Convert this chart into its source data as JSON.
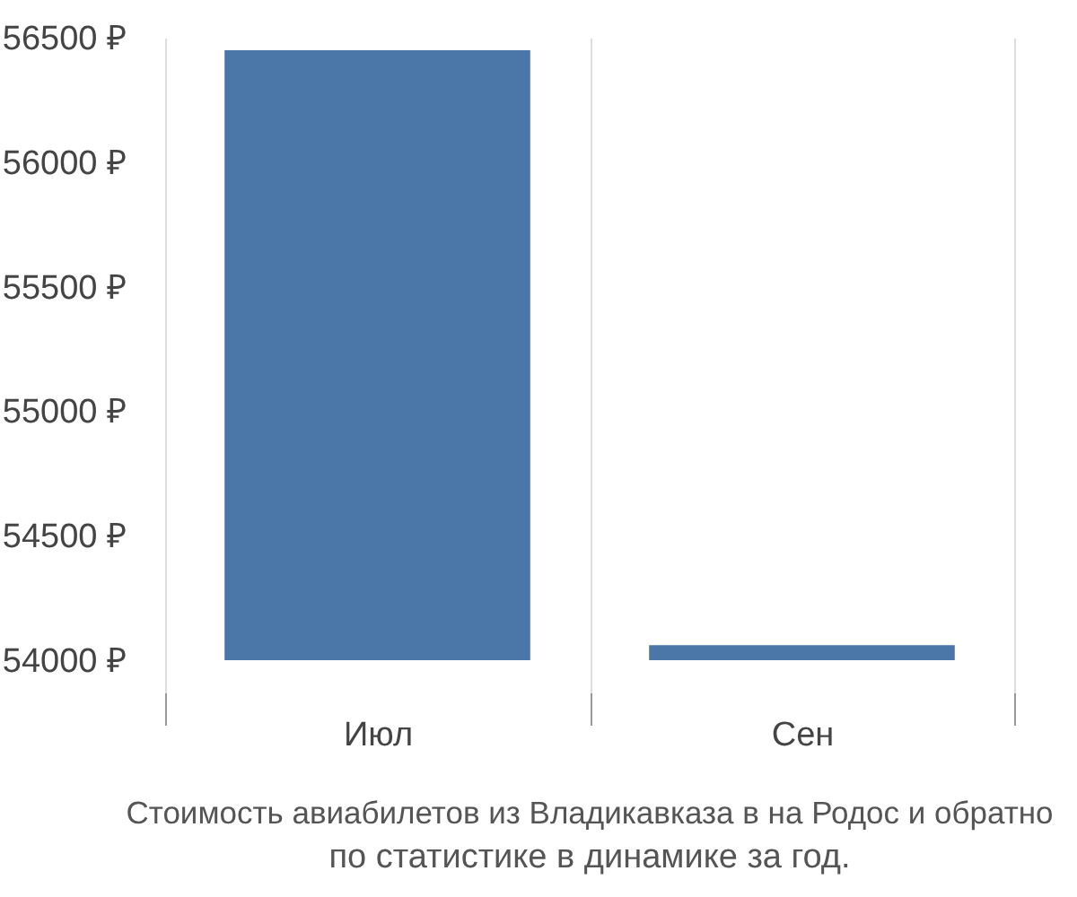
{
  "chart_data": {
    "type": "bar",
    "title": "Стоимость авиабилетов из Владикавказа в на Родос и обратно",
    "subtitle": "по статистике в динамике за год.",
    "categories": [
      "Июл",
      "Сен"
    ],
    "base": [
      54000,
      54000
    ],
    "values": [
      2450,
      60
    ],
    "color": "#4a76a8",
    "ylim": [
      53870,
      56500
    ],
    "yticks": [
      {
        "value": 54000,
        "label": "54000 ₽"
      },
      {
        "value": 54500,
        "label": "54500 ₽"
      },
      {
        "value": 55000,
        "label": "55000 ₽"
      },
      {
        "value": 55500,
        "label": "55500 ₽"
      },
      {
        "value": 56000,
        "label": "56000 ₽"
      },
      {
        "value": 56500,
        "label": "56500 ₽"
      }
    ],
    "grid": "x"
  }
}
